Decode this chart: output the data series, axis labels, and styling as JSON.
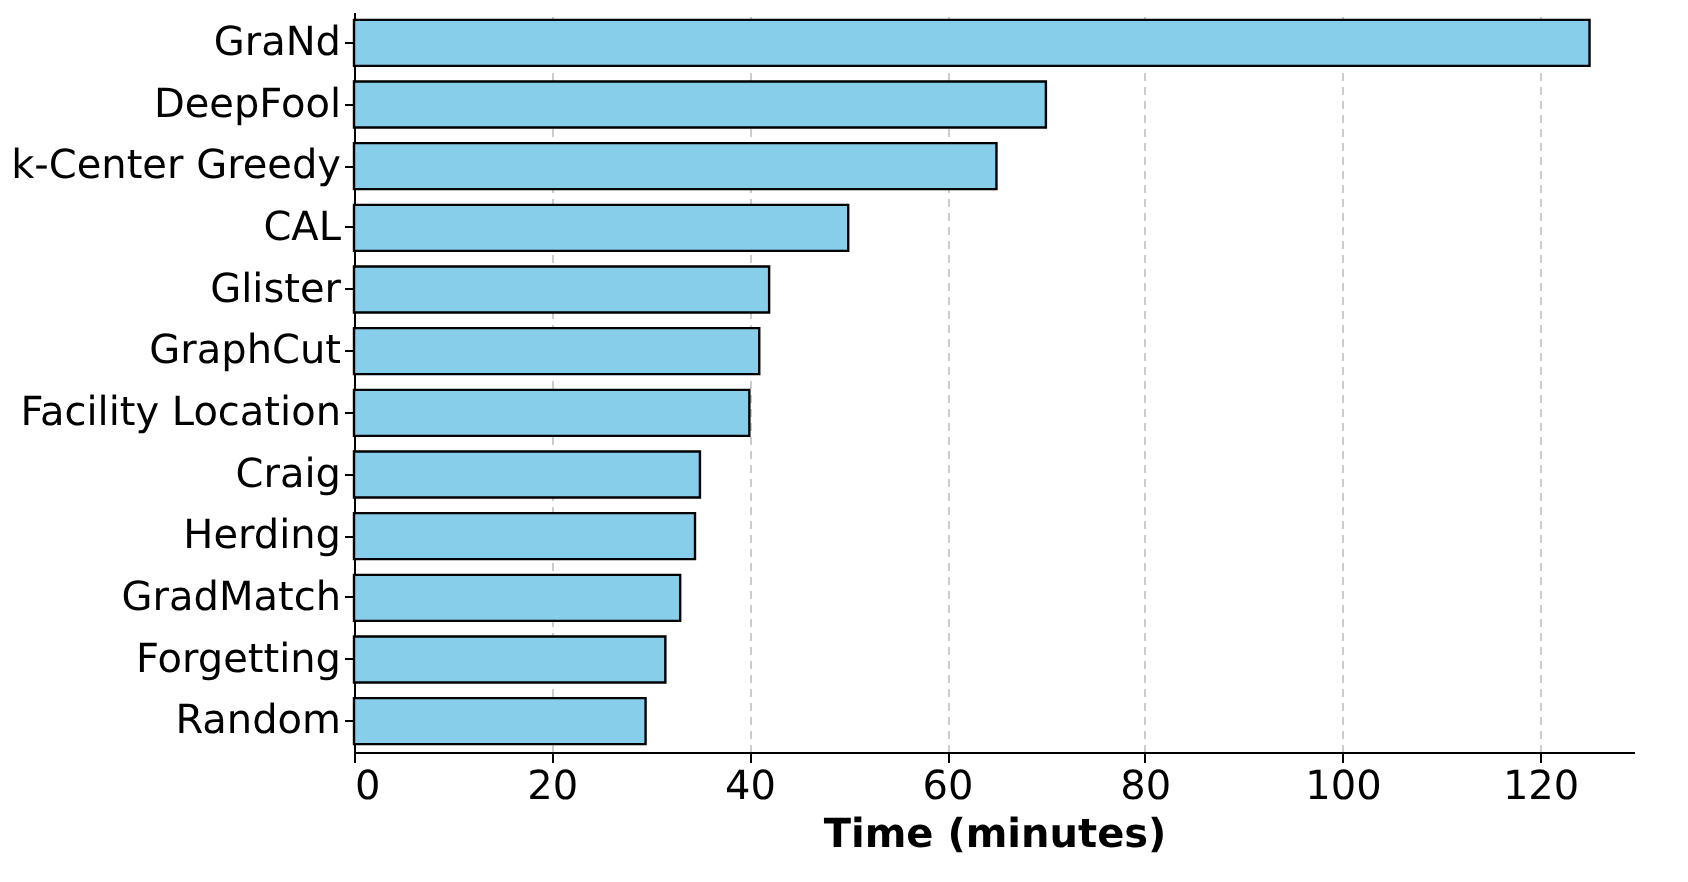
{
  "chart_data": {
    "type": "bar",
    "orientation": "horizontal",
    "xlabel": "Time (minutes)",
    "categories": [
      "GraNd",
      "DeepFool",
      "k-Center Greedy",
      "CAL",
      "Glister",
      "GraphCut",
      "Facility Location",
      "Craig",
      "Herding",
      "GradMatch",
      "Forgetting",
      "Random"
    ],
    "values": [
      125,
      70,
      65,
      50,
      42,
      41,
      40,
      35,
      34.5,
      33,
      31.5,
      29.5
    ],
    "color": "#87ceeb",
    "xlim": [
      0,
      129.5
    ],
    "xticks": [
      0,
      20,
      40,
      60,
      80,
      100,
      120
    ],
    "grid": "x"
  }
}
